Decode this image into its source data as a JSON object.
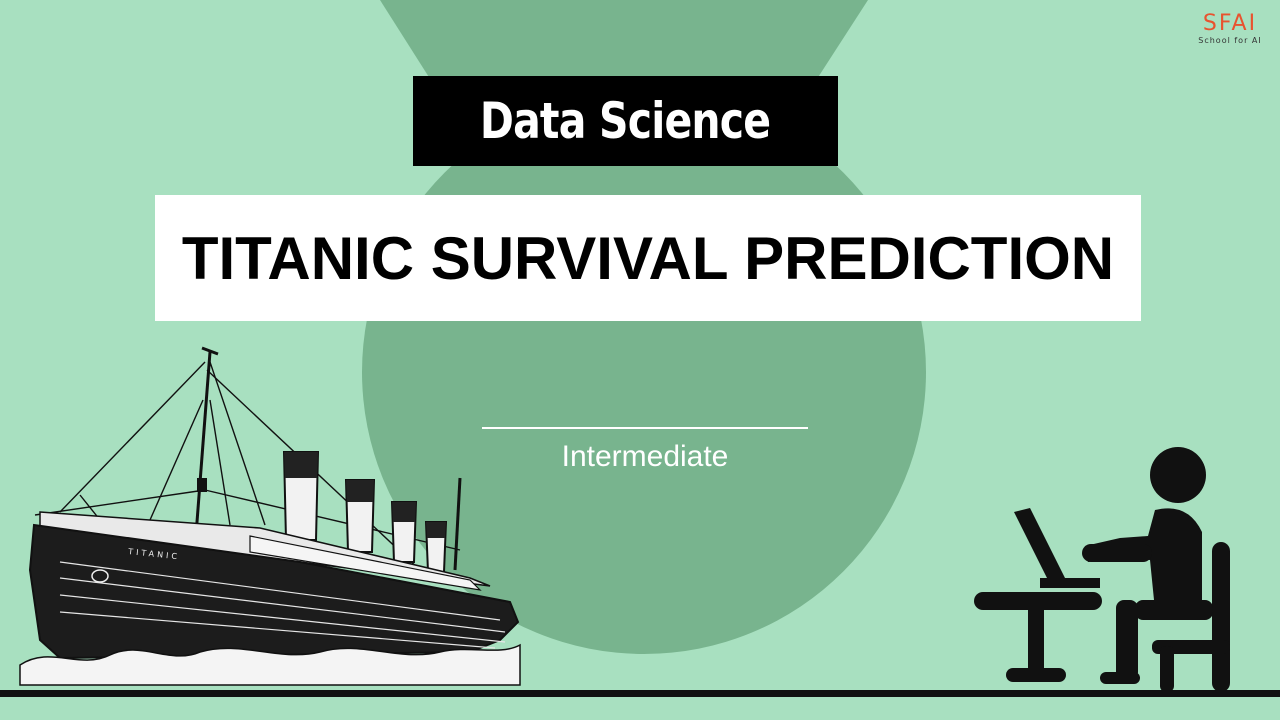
{
  "header": {
    "category": "Data Science",
    "title": "TITANIC SURVIVAL PREDICTION",
    "level": "Intermediate"
  },
  "logo": {
    "mark": "SFAI",
    "tagline": "School for AI"
  },
  "ship": {
    "name": "TITANIC"
  },
  "icons": [
    "ship-illustration",
    "person-at-laptop-icon"
  ],
  "colors": {
    "background": "#a8e0c0",
    "accent_shape": "#78b48e",
    "banner_dark": "#000000",
    "banner_light": "#ffffff",
    "logo_accent": "#e8532f"
  }
}
